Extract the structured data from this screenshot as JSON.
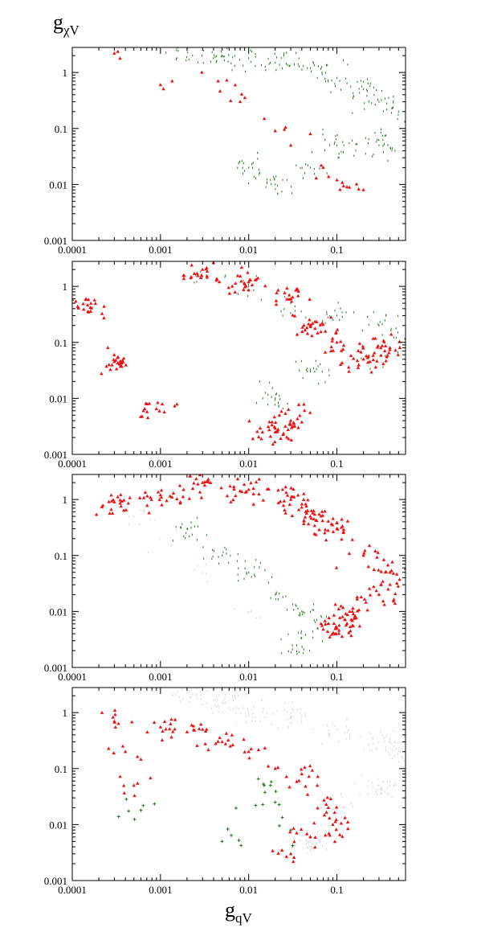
{
  "figure": {
    "ylabel_main": "g",
    "ylabel_sub": "χV",
    "xlabel_main": "g",
    "xlabel_sub": "qV"
  },
  "chart_data": [
    {
      "type": "scatter",
      "x_scale": "log",
      "y_scale": "log",
      "xlim": [
        0.0001,
        0.6
      ],
      "ylim": [
        0.001,
        2.8
      ],
      "xticks": [
        "0.0001",
        "0.001",
        "0.01",
        "0.1"
      ],
      "yticks": [
        "0.001",
        "0.01",
        "0.1",
        "1"
      ],
      "grid": false,
      "series": [
        {
          "marker": "dot",
          "color": "#1e7a1e",
          "density": "dense",
          "points": [
            [
              0.002,
              2.5
            ],
            [
              0.005,
              2.0
            ],
            [
              0.01,
              1.8
            ],
            [
              0.02,
              1.5
            ],
            [
              0.05,
              1.2
            ],
            [
              0.1,
              0.8
            ],
            [
              0.2,
              0.5
            ],
            [
              0.3,
              0.3
            ],
            [
              0.5,
              0.2
            ],
            [
              0.3,
              0.05
            ],
            [
              0.1,
              0.05
            ],
            [
              0.05,
              0.02
            ],
            [
              0.02,
              0.01
            ],
            [
              0.01,
              0.02
            ]
          ]
        },
        {
          "marker": "triangle",
          "color": "#ee1111",
          "density": "sparse",
          "points": [
            [
              0.0003,
              2.2
            ],
            [
              0.001,
              0.6
            ],
            [
              0.0045,
              0.7
            ],
            [
              0.008,
              0.3
            ],
            [
              0.015,
              0.15
            ],
            [
              0.02,
              0.09
            ],
            [
              0.03,
              0.05
            ],
            [
              0.05,
              0.08
            ],
            [
              0.07,
              0.02
            ],
            [
              0.1,
              0.012
            ],
            [
              0.13,
              0.009
            ],
            [
              0.2,
              0.008
            ]
          ]
        }
      ]
    },
    {
      "type": "scatter",
      "x_scale": "log",
      "y_scale": "log",
      "xlim": [
        0.0001,
        0.6
      ],
      "ylim": [
        0.001,
        2.8
      ],
      "xticks": [
        "0.0001",
        "0.001",
        "0.01",
        "0.1"
      ],
      "yticks": [
        "0.001",
        "0.01",
        "0.1",
        "1"
      ],
      "grid": false,
      "series": [
        {
          "marker": "dot",
          "color": "#1e7a1e",
          "density": "medium",
          "points": [
            [
              0.003,
              1.5
            ],
            [
              0.01,
              1.0
            ],
            [
              0.03,
              0.5
            ],
            [
              0.1,
              0.3
            ],
            [
              0.3,
              0.2
            ],
            [
              0.5,
              0.1
            ],
            [
              0.2,
              0.05
            ],
            [
              0.05,
              0.03
            ],
            [
              0.02,
              0.01
            ]
          ]
        },
        {
          "marker": "triangle",
          "color": "#ee1111",
          "density": "dense",
          "points": [
            [
              0.00016,
              0.42
            ],
            [
              0.0003,
              0.045
            ],
            [
              0.0009,
              0.0065
            ],
            [
              0.003,
              2.0
            ],
            [
              0.01,
              1.2
            ],
            [
              0.03,
              0.6
            ],
            [
              0.05,
              0.2
            ],
            [
              0.1,
              0.1
            ],
            [
              0.2,
              0.05
            ],
            [
              0.4,
              0.08
            ],
            [
              0.03,
              0.004
            ],
            [
              0.02,
              0.0025
            ]
          ]
        }
      ]
    },
    {
      "type": "scatter",
      "x_scale": "log",
      "y_scale": "log",
      "xlim": [
        0.0001,
        0.6
      ],
      "ylim": [
        0.001,
        2.8
      ],
      "xticks": [
        "0.0001",
        "0.001",
        "0.01",
        "0.1"
      ],
      "yticks": [
        "0.001",
        "0.01",
        "0.1",
        "1"
      ],
      "grid": false,
      "series": [
        {
          "marker": "dot",
          "color": "#d6d6d6",
          "density": "sparse",
          "points": [
            [
              0.0005,
              0.5
            ],
            [
              0.001,
              0.2
            ],
            [
              0.003,
              0.05
            ],
            [
              0.01,
              0.01
            ]
          ]
        },
        {
          "marker": "dot",
          "color": "#1e7a1e",
          "density": "medium",
          "points": [
            [
              0.002,
              0.3
            ],
            [
              0.005,
              0.1
            ],
            [
              0.01,
              0.05
            ],
            [
              0.02,
              0.02
            ],
            [
              0.04,
              0.01
            ],
            [
              0.06,
              0.005
            ],
            [
              0.035,
              0.0025
            ]
          ]
        },
        {
          "marker": "triangle",
          "color": "#ee1111",
          "density": "dense",
          "points": [
            [
              0.0003,
              0.9
            ],
            [
              0.001,
              1.2
            ],
            [
              0.003,
              2.0
            ],
            [
              0.01,
              1.5
            ],
            [
              0.03,
              1.0
            ],
            [
              0.05,
              0.5
            ],
            [
              0.1,
              0.3
            ],
            [
              0.2,
              0.1
            ],
            [
              0.4,
              0.05
            ],
            [
              0.3,
              0.02
            ],
            [
              0.15,
              0.01
            ],
            [
              0.1,
              0.005
            ]
          ]
        }
      ]
    },
    {
      "type": "scatter",
      "x_scale": "log",
      "y_scale": "log",
      "xlim": [
        0.0001,
        0.6
      ],
      "ylim": [
        0.001,
        2.8
      ],
      "xticks": [
        "0.0001",
        "0.001",
        "0.01",
        "0.1"
      ],
      "yticks": [
        "0.001",
        "0.01",
        "0.1",
        "1"
      ],
      "grid": false,
      "series": [
        {
          "marker": "dot",
          "color": "#d6d6d6",
          "density": "dense",
          "points": [
            [
              0.002,
              2.5
            ],
            [
              0.005,
              1.5
            ],
            [
              0.01,
              1.0
            ],
            [
              0.03,
              0.8
            ],
            [
              0.1,
              0.5
            ],
            [
              0.3,
              0.3
            ],
            [
              0.5,
              0.2
            ],
            [
              0.3,
              0.05
            ],
            [
              0.1,
              0.02
            ],
            [
              0.05,
              0.005
            ]
          ]
        },
        {
          "marker": "cross",
          "color": "#1e7a1e",
          "density": "sparse",
          "points": [
            [
              0.0006,
              0.018
            ],
            [
              0.005,
              0.005
            ],
            [
              0.02,
              0.025
            ],
            [
              0.03,
              0.008
            ],
            [
              0.05,
              0.006
            ],
            [
              0.015,
              0.05
            ],
            [
              0.012,
              0.022
            ]
          ]
        },
        {
          "marker": "triangle",
          "color": "#ee1111",
          "density": "medium",
          "points": [
            [
              0.0003,
              0.7
            ],
            [
              0.0004,
              0.2
            ],
            [
              0.0005,
              0.05
            ],
            [
              0.001,
              0.55
            ],
            [
              0.002,
              0.45
            ],
            [
              0.003,
              0.5
            ],
            [
              0.005,
              0.3
            ],
            [
              0.01,
              0.2
            ],
            [
              0.02,
              0.1
            ],
            [
              0.04,
              0.08
            ],
            [
              0.06,
              0.05
            ],
            [
              0.08,
              0.02
            ],
            [
              0.09,
              0.01
            ],
            [
              0.05,
              0.006
            ],
            [
              0.03,
              0.003
            ]
          ]
        }
      ]
    }
  ]
}
